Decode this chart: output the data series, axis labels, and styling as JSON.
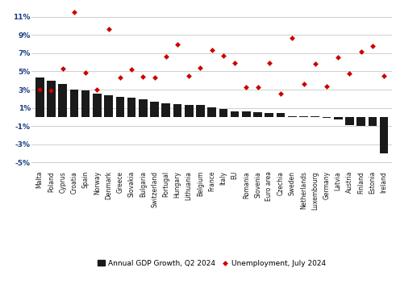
{
  "countries": [
    "Malta",
    "Poland",
    "Cyprus",
    "Croatia",
    "Spain",
    "Norway",
    "Denmark",
    "Greece",
    "Slovakia",
    "Bulgaria",
    "Switzerland",
    "Portugal",
    "Hungary",
    "Lithuania",
    "Belgium",
    "France",
    "Italy",
    "EU",
    "Romania",
    "Slovenia",
    "Euro area",
    "Czechia",
    "Sweden",
    "Netherlands",
    "Luxembourg",
    "Germany",
    "Latvia",
    "Austria",
    "Finland",
    "Estonia",
    "Ireland"
  ],
  "gdp": [
    4.3,
    4.0,
    3.6,
    3.0,
    2.9,
    2.6,
    2.4,
    2.2,
    2.1,
    1.9,
    1.7,
    1.5,
    1.4,
    1.3,
    1.3,
    1.1,
    0.9,
    0.6,
    0.6,
    0.5,
    0.4,
    0.4,
    0.1,
    0.1,
    0.1,
    -0.1,
    -0.3,
    -0.9,
    -1.0,
    -1.0,
    -4.0
  ],
  "unemployment": [
    3.0,
    2.9,
    5.3,
    11.5,
    4.9,
    3.0,
    9.6,
    4.3,
    5.2,
    4.4,
    4.3,
    6.6,
    8.0,
    4.5,
    5.4,
    7.3,
    6.7,
    5.9,
    3.3,
    3.3,
    5.9,
    2.6,
    8.7,
    3.6,
    5.8,
    3.4,
    6.5,
    4.8,
    7.2,
    7.8,
    4.5
  ],
  "bar_color": "#1a1a1a",
  "dot_color": "#cc0000",
  "ytick_color": "#1a4080",
  "ytick_labels": [
    "-5%",
    "-3%",
    "-1%",
    "1%",
    "3%",
    "5%",
    "7%",
    "9%",
    "11%"
  ],
  "ytick_values": [
    -5,
    -3,
    -1,
    1,
    3,
    5,
    7,
    9,
    11
  ],
  "ylim": [
    -5.8,
    12.5
  ],
  "legend_gdp": "Annual GDP Growth, Q2 2024",
  "legend_unemp": "Unemployment, July 2024",
  "background_color": "#ffffff",
  "grid_color": "#c8c8c8"
}
